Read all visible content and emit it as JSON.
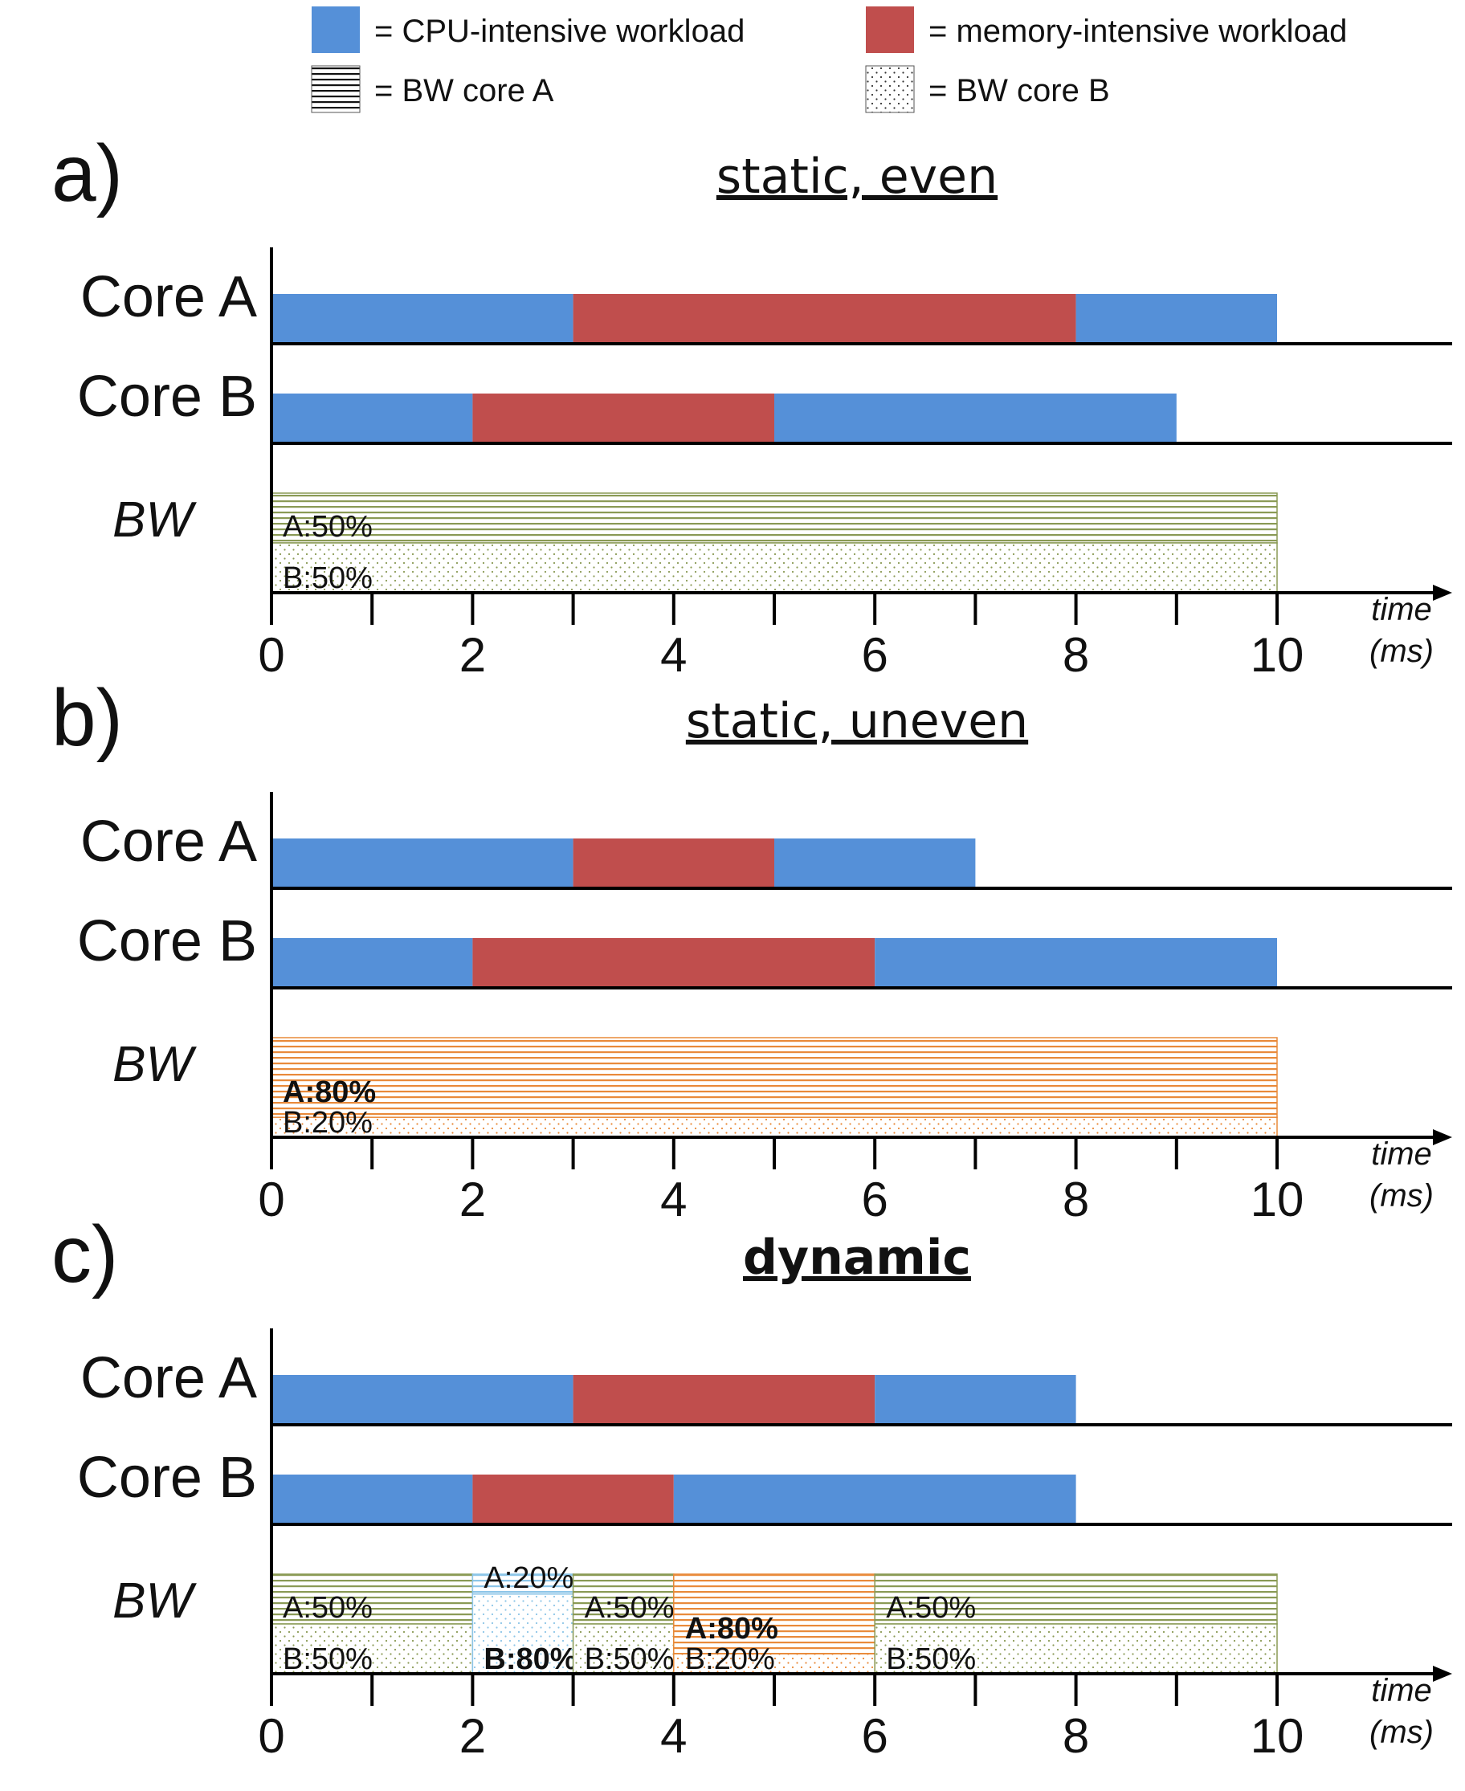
{
  "legend": {
    "items": [
      {
        "key": "cpu",
        "label": "= CPU-intensive workload",
        "pattern": "solid",
        "color": "#5590d8"
      },
      {
        "key": "mem",
        "label": "= memory-intensive workload",
        "pattern": "solid",
        "color": "#c04e4d"
      },
      {
        "key": "bwA",
        "label": "= BW core A",
        "pattern": "stripes",
        "color": "#222222"
      },
      {
        "key": "bwB",
        "label": "= BW core B",
        "pattern": "dots",
        "color": "#222222"
      }
    ]
  },
  "colors": {
    "cpu": "#5590d8",
    "mem": "#c04e4d",
    "bw_even": "#8a9a55",
    "bw_orange": "#e98a3a",
    "bw_blue": "#8cc5e8",
    "axis": "#000000"
  },
  "rows": {
    "core_a": "Core A",
    "core_b": "Core B",
    "bw": "BW"
  },
  "axis": {
    "ticks_labeled": [
      "0",
      "2",
      "4",
      "6",
      "8",
      "10"
    ],
    "tick_values": [
      0,
      1,
      2,
      3,
      4,
      5,
      6,
      7,
      8,
      9,
      10
    ],
    "xlim": [
      0,
      10.8
    ],
    "time_label": "time",
    "unit_label": "(ms)"
  },
  "panels": [
    {
      "letter": "a)",
      "title": "static, even",
      "title_bold": false,
      "core_a": [
        {
          "type": "cpu",
          "start": 0,
          "end": 3
        },
        {
          "type": "mem",
          "start": 3,
          "end": 8
        },
        {
          "type": "cpu",
          "start": 8,
          "end": 10
        }
      ],
      "core_b": [
        {
          "type": "cpu",
          "start": 0,
          "end": 2
        },
        {
          "type": "mem",
          "start": 2,
          "end": 5
        },
        {
          "type": "cpu",
          "start": 5,
          "end": 9
        }
      ],
      "bw": [
        {
          "start": 0,
          "end": 10,
          "a_share": 0.5,
          "a_label": "A:50%",
          "b_label": "B:50%",
          "bold": "",
          "color_key": "bw_even"
        }
      ]
    },
    {
      "letter": "b)",
      "title": "static, uneven",
      "title_bold": false,
      "core_a": [
        {
          "type": "cpu",
          "start": 0,
          "end": 3
        },
        {
          "type": "mem",
          "start": 3,
          "end": 5
        },
        {
          "type": "cpu",
          "start": 5,
          "end": 7
        }
      ],
      "core_b": [
        {
          "type": "cpu",
          "start": 0,
          "end": 2
        },
        {
          "type": "mem",
          "start": 2,
          "end": 6
        },
        {
          "type": "cpu",
          "start": 6,
          "end": 10
        }
      ],
      "bw": [
        {
          "start": 0,
          "end": 10,
          "a_share": 0.8,
          "a_label": "A:80%",
          "b_label": "B:20%",
          "bold": "a",
          "color_key": "bw_orange"
        }
      ]
    },
    {
      "letter": "c)",
      "title": "dynamic",
      "title_bold": true,
      "core_a": [
        {
          "type": "cpu",
          "start": 0,
          "end": 3
        },
        {
          "type": "mem",
          "start": 3,
          "end": 6
        },
        {
          "type": "cpu",
          "start": 6,
          "end": 8
        }
      ],
      "core_b": [
        {
          "type": "cpu",
          "start": 0,
          "end": 2
        },
        {
          "type": "mem",
          "start": 2,
          "end": 4
        },
        {
          "type": "cpu",
          "start": 4,
          "end": 8
        }
      ],
      "bw": [
        {
          "start": 0,
          "end": 2,
          "a_share": 0.5,
          "a_label": "A:50%",
          "b_label": "B:50%",
          "bold": "",
          "color_key": "bw_even"
        },
        {
          "start": 2,
          "end": 3,
          "a_share": 0.2,
          "a_label": "A:20%",
          "b_label": "B:80%",
          "bold": "b",
          "color_key": "bw_blue"
        },
        {
          "start": 3,
          "end": 4,
          "a_share": 0.5,
          "a_label": "A:50%",
          "b_label": "B:50%",
          "bold": "",
          "color_key": "bw_even"
        },
        {
          "start": 4,
          "end": 6,
          "a_share": 0.8,
          "a_label": "A:80%",
          "b_label": "B:20%",
          "bold": "a",
          "color_key": "bw_orange"
        },
        {
          "start": 6,
          "end": 10,
          "a_share": 0.5,
          "a_label": "A:50%",
          "b_label": "B:50%",
          "bold": "",
          "color_key": "bw_even"
        }
      ]
    }
  ]
}
